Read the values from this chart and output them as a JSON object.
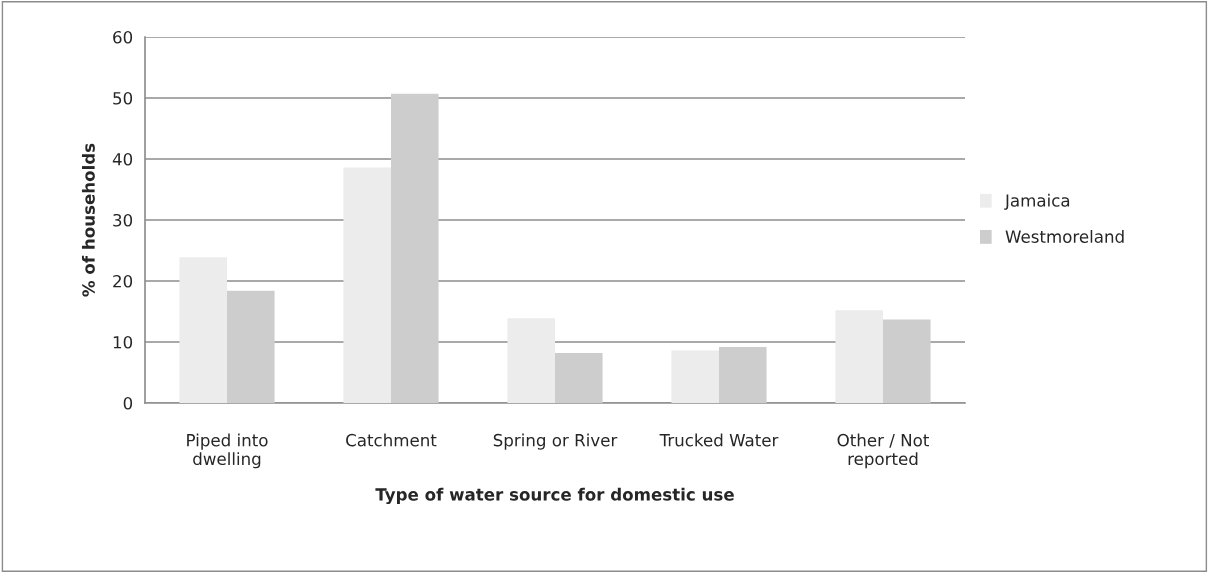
{
  "chart_data": {
    "type": "bar",
    "xlabel": "Type of water source for domestic use",
    "ylabel": "% of households",
    "categories": [
      "Piped into\ndwelling",
      "Catchment",
      "Spring or River",
      "Trucked Water",
      "Other / Not\nreported"
    ],
    "series": [
      {
        "name": "Jamaica",
        "color": "#ececec",
        "values": [
          23.9,
          38.6,
          13.9,
          8.6,
          15.2
        ]
      },
      {
        "name": "Westmoreland",
        "color": "#cdcdcd",
        "values": [
          18.4,
          50.7,
          8.2,
          9.2,
          13.7
        ]
      }
    ],
    "ylim": [
      0,
      60
    ],
    "yticks": [
      0,
      10,
      20,
      30,
      40,
      50,
      60
    ],
    "grid": "y",
    "legend": "right"
  }
}
